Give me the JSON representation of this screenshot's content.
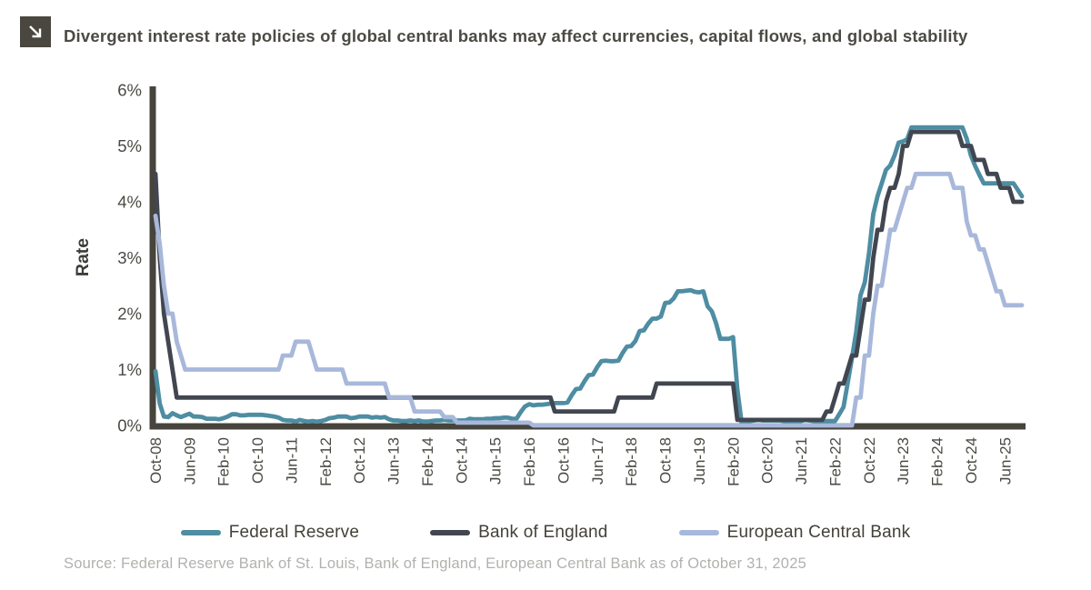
{
  "header": {
    "title": "Divergent interest rate policies of global central banks may affect currencies, capital flows, and global stability",
    "icon": "arrow-down-right"
  },
  "source": "Source: Federal Reserve Bank of St. Louis, Bank of England, European Central Bank as of October 31, 2025",
  "colors": {
    "fed": "#4e8da2",
    "boe": "#414650",
    "ecb": "#a8b8db",
    "axis": "#46443c",
    "tick_text": "#4b4943",
    "axis_label_text": "#3f3d38",
    "title_text": "#4c4a44",
    "source_text": "#b3b1ae",
    "icon_bg": "#49473f",
    "icon_glyph": "#ffffff"
  },
  "chart_data": {
    "type": "line",
    "title": "Divergent interest rate policies of global central banks may affect currencies, capital flows, and global stability",
    "xlabel": "",
    "ylabel": "Rate",
    "ylim": [
      0,
      6
    ],
    "y_ticks": [
      "0%",
      "1%",
      "2%",
      "3%",
      "4%",
      "5%",
      "6%"
    ],
    "grid": false,
    "legend_position": "bottom",
    "x_unit": "month",
    "x_range": "Oct-2008 to Oct-2025",
    "x_tick_every_n_months": 8,
    "x_tick_labels": [
      "Oct-08",
      "Jun-09",
      "Feb-10",
      "Oct-10",
      "Jun-11",
      "Feb-12",
      "Oct-12",
      "Jun-13",
      "Feb-14",
      "Oct-14",
      "Jun-15",
      "Feb-16",
      "Oct-16",
      "Jun-17",
      "Feb-18",
      "Oct-18",
      "Jun-19",
      "Feb-20",
      "Oct-20",
      "Jun-21",
      "Feb-22",
      "Oct-22",
      "Jun-23",
      "Feb-24",
      "Oct-24",
      "Jun-25"
    ],
    "series": [
      {
        "name": "Federal Reserve",
        "color_key": "fed",
        "values": [
          0.97,
          0.39,
          0.16,
          0.15,
          0.22,
          0.18,
          0.15,
          0.18,
          0.21,
          0.16,
          0.16,
          0.15,
          0.12,
          0.12,
          0.12,
          0.11,
          0.13,
          0.16,
          0.2,
          0.2,
          0.18,
          0.18,
          0.19,
          0.19,
          0.19,
          0.19,
          0.18,
          0.17,
          0.16,
          0.14,
          0.1,
          0.09,
          0.09,
          0.07,
          0.1,
          0.08,
          0.07,
          0.08,
          0.07,
          0.08,
          0.1,
          0.13,
          0.14,
          0.16,
          0.16,
          0.16,
          0.13,
          0.14,
          0.16,
          0.16,
          0.16,
          0.14,
          0.15,
          0.14,
          0.15,
          0.11,
          0.09,
          0.09,
          0.08,
          0.08,
          0.09,
          0.08,
          0.09,
          0.07,
          0.07,
          0.08,
          0.09,
          0.09,
          0.1,
          0.09,
          0.09,
          0.09,
          0.09,
          0.09,
          0.12,
          0.11,
          0.11,
          0.11,
          0.12,
          0.12,
          0.13,
          0.13,
          0.14,
          0.14,
          0.12,
          0.12,
          0.24,
          0.34,
          0.38,
          0.36,
          0.37,
          0.37,
          0.38,
          0.39,
          0.4,
          0.4,
          0.4,
          0.41,
          0.54,
          0.65,
          0.66,
          0.79,
          0.9,
          0.91,
          1.04,
          1.15,
          1.16,
          1.15,
          1.15,
          1.16,
          1.3,
          1.41,
          1.42,
          1.51,
          1.69,
          1.7,
          1.82,
          1.91,
          1.91,
          1.95,
          2.19,
          2.2,
          2.27,
          2.4,
          2.4,
          2.41,
          2.42,
          2.39,
          2.38,
          2.4,
          2.13,
          2.04,
          1.83,
          1.55,
          1.55,
          1.55,
          1.58,
          0.65,
          0.05,
          0.05,
          0.08,
          0.09,
          0.1,
          0.09,
          0.09,
          0.09,
          0.09,
          0.09,
          0.08,
          0.07,
          0.07,
          0.06,
          0.08,
          0.1,
          0.09,
          0.08,
          0.08,
          0.08,
          0.08,
          0.08,
          0.08,
          0.2,
          0.33,
          0.77,
          1.21,
          1.68,
          2.33,
          2.56,
          3.08,
          3.78,
          4.1,
          4.33,
          4.57,
          4.65,
          4.83,
          5.06,
          5.08,
          5.12,
          5.33,
          5.33,
          5.33,
          5.33,
          5.33,
          5.33,
          5.33,
          5.33,
          5.33,
          5.33,
          5.33,
          5.33,
          5.33,
          5.13,
          4.83,
          4.64,
          4.48,
          4.33,
          4.33,
          4.33,
          4.33,
          4.33,
          4.33,
          4.33,
          4.33,
          4.22,
          4.1
        ]
      },
      {
        "name": "Bank of England",
        "color_key": "boe",
        "values": [
          4.5,
          3.0,
          2.0,
          1.5,
          1.0,
          0.5,
          0.5,
          0.5,
          0.5,
          0.5,
          0.5,
          0.5,
          0.5,
          0.5,
          0.5,
          0.5,
          0.5,
          0.5,
          0.5,
          0.5,
          0.5,
          0.5,
          0.5,
          0.5,
          0.5,
          0.5,
          0.5,
          0.5,
          0.5,
          0.5,
          0.5,
          0.5,
          0.5,
          0.5,
          0.5,
          0.5,
          0.5,
          0.5,
          0.5,
          0.5,
          0.5,
          0.5,
          0.5,
          0.5,
          0.5,
          0.5,
          0.5,
          0.5,
          0.5,
          0.5,
          0.5,
          0.5,
          0.5,
          0.5,
          0.5,
          0.5,
          0.5,
          0.5,
          0.5,
          0.5,
          0.5,
          0.5,
          0.5,
          0.5,
          0.5,
          0.5,
          0.5,
          0.5,
          0.5,
          0.5,
          0.5,
          0.5,
          0.5,
          0.5,
          0.5,
          0.5,
          0.5,
          0.5,
          0.5,
          0.5,
          0.5,
          0.5,
          0.5,
          0.5,
          0.5,
          0.5,
          0.5,
          0.5,
          0.5,
          0.5,
          0.5,
          0.5,
          0.5,
          0.5,
          0.25,
          0.25,
          0.25,
          0.25,
          0.25,
          0.25,
          0.25,
          0.25,
          0.25,
          0.25,
          0.25,
          0.25,
          0.25,
          0.25,
          0.25,
          0.5,
          0.5,
          0.5,
          0.5,
          0.5,
          0.5,
          0.5,
          0.5,
          0.5,
          0.75,
          0.75,
          0.75,
          0.75,
          0.75,
          0.75,
          0.75,
          0.75,
          0.75,
          0.75,
          0.75,
          0.75,
          0.75,
          0.75,
          0.75,
          0.75,
          0.75,
          0.75,
          0.75,
          0.1,
          0.1,
          0.1,
          0.1,
          0.1,
          0.1,
          0.1,
          0.1,
          0.1,
          0.1,
          0.1,
          0.1,
          0.1,
          0.1,
          0.1,
          0.1,
          0.1,
          0.1,
          0.1,
          0.1,
          0.1,
          0.25,
          0.25,
          0.5,
          0.75,
          0.75,
          1.0,
          1.25,
          1.25,
          1.75,
          2.25,
          2.25,
          3.0,
          3.5,
          3.5,
          4.0,
          4.25,
          4.25,
          4.5,
          5.0,
          5.0,
          5.25,
          5.25,
          5.25,
          5.25,
          5.25,
          5.25,
          5.25,
          5.25,
          5.25,
          5.25,
          5.25,
          5.25,
          5.0,
          5.0,
          5.0,
          4.75,
          4.75,
          4.75,
          4.5,
          4.5,
          4.5,
          4.25,
          4.25,
          4.25,
          4.0,
          4.0,
          4.0
        ]
      },
      {
        "name": "European Central Bank",
        "color_key": "ecb",
        "values": [
          3.75,
          3.25,
          2.5,
          2.0,
          2.0,
          1.5,
          1.25,
          1.0,
          1.0,
          1.0,
          1.0,
          1.0,
          1.0,
          1.0,
          1.0,
          1.0,
          1.0,
          1.0,
          1.0,
          1.0,
          1.0,
          1.0,
          1.0,
          1.0,
          1.0,
          1.0,
          1.0,
          1.0,
          1.0,
          1.0,
          1.25,
          1.25,
          1.25,
          1.5,
          1.5,
          1.5,
          1.5,
          1.25,
          1.0,
          1.0,
          1.0,
          1.0,
          1.0,
          1.0,
          1.0,
          0.75,
          0.75,
          0.75,
          0.75,
          0.75,
          0.75,
          0.75,
          0.75,
          0.75,
          0.75,
          0.5,
          0.5,
          0.5,
          0.5,
          0.5,
          0.5,
          0.25,
          0.25,
          0.25,
          0.25,
          0.25,
          0.25,
          0.25,
          0.15,
          0.15,
          0.15,
          0.05,
          0.05,
          0.05,
          0.05,
          0.05,
          0.05,
          0.05,
          0.05,
          0.05,
          0.05,
          0.05,
          0.05,
          0.05,
          0.05,
          0.05,
          0.05,
          0.05,
          0.05,
          0.0,
          0.0,
          0.0,
          0.0,
          0.0,
          0.0,
          0.0,
          0.0,
          0.0,
          0.0,
          0.0,
          0.0,
          0.0,
          0.0,
          0.0,
          0.0,
          0.0,
          0.0,
          0.0,
          0.0,
          0.0,
          0.0,
          0.0,
          0.0,
          0.0,
          0.0,
          0.0,
          0.0,
          0.0,
          0.0,
          0.0,
          0.0,
          0.0,
          0.0,
          0.0,
          0.0,
          0.0,
          0.0,
          0.0,
          0.0,
          0.0,
          0.0,
          0.0,
          0.0,
          0.0,
          0.0,
          0.0,
          0.0,
          0.0,
          0.0,
          0.0,
          0.0,
          0.0,
          0.0,
          0.0,
          0.0,
          0.0,
          0.0,
          0.0,
          0.0,
          0.0,
          0.0,
          0.0,
          0.0,
          0.0,
          0.0,
          0.0,
          0.0,
          0.0,
          0.0,
          0.0,
          0.0,
          0.0,
          0.0,
          0.0,
          0.0,
          0.5,
          0.5,
          1.25,
          1.25,
          2.0,
          2.5,
          2.5,
          3.0,
          3.5,
          3.5,
          3.75,
          4.0,
          4.25,
          4.25,
          4.5,
          4.5,
          4.5,
          4.5,
          4.5,
          4.5,
          4.5,
          4.5,
          4.5,
          4.25,
          4.25,
          4.25,
          3.65,
          3.4,
          3.4,
          3.15,
          3.15,
          2.9,
          2.65,
          2.4,
          2.4,
          2.15,
          2.15,
          2.15,
          2.15,
          2.15
        ]
      }
    ]
  }
}
